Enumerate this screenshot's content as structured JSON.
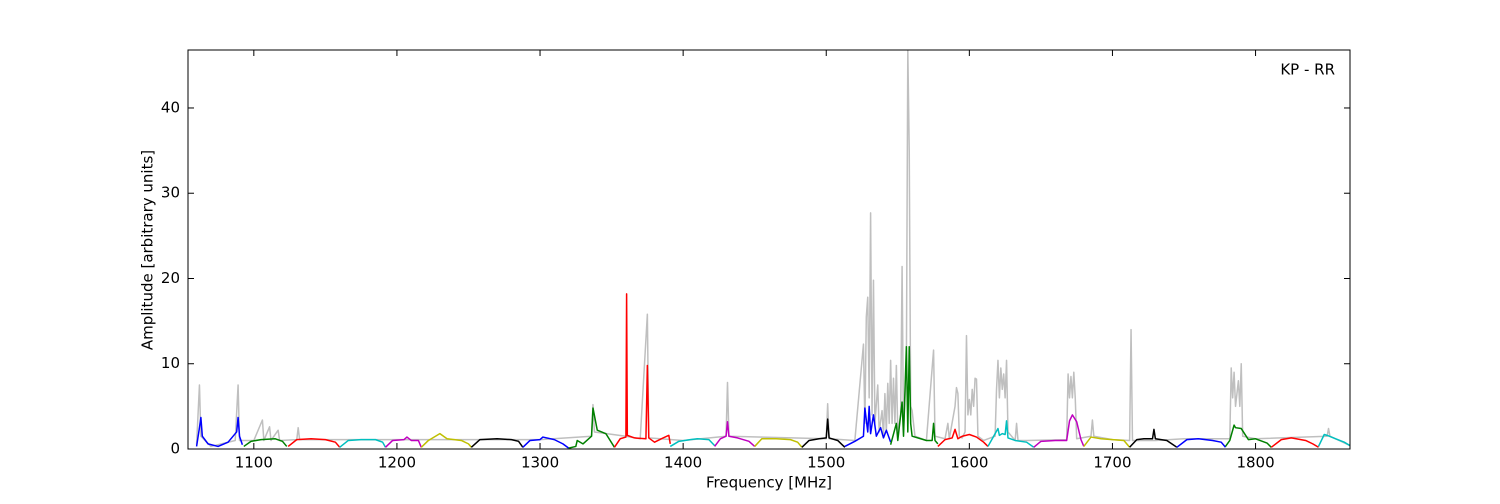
{
  "chart_data": {
    "type": "line",
    "annotation": "KP - RR",
    "xlabel": "Frequency [MHz]",
    "ylabel": "Amplitude [arbitrary units]",
    "xlim": [
      1054,
      1866
    ],
    "ylim": [
      0,
      46.8
    ],
    "xticks": [
      1100,
      1200,
      1300,
      1400,
      1500,
      1600,
      1700,
      1800
    ],
    "yticks": [
      0,
      10,
      20,
      30,
      40
    ],
    "series": [
      {
        "color": "#bfbfbf",
        "x": [
          1060,
          1062,
          1063,
          1070,
          1087,
          1089,
          1090,
          1100,
          1106,
          1107,
          1111,
          1112,
          1117,
          1118,
          1130,
          1131,
          1132,
          1200,
          1300,
          1336,
          1337,
          1338,
          1360,
          1370,
          1375,
          1376,
          1400,
          1430,
          1431,
          1432,
          1500,
          1501,
          1502,
          1520,
          1526,
          1527,
          1528,
          1529,
          1530,
          1531,
          1532,
          1533,
          1534,
          1536,
          1537,
          1539,
          1540,
          1541,
          1542,
          1543,
          1544,
          1545,
          1546,
          1547,
          1548,
          1549,
          1550,
          1552,
          1553,
          1554,
          1556,
          1557,
          1558,
          1559,
          1560,
          1561,
          1562,
          1570,
          1575,
          1576,
          1583,
          1585,
          1586,
          1590,
          1591,
          1592,
          1593,
          1595,
          1597,
          1598,
          1599,
          1600,
          1601,
          1602,
          1603,
          1604,
          1605,
          1606,
          1610,
          1618,
          1619,
          1620,
          1621,
          1622,
          1623,
          1624,
          1625,
          1626,
          1627,
          1632,
          1633,
          1634,
          1640,
          1668,
          1669,
          1670,
          1671,
          1672,
          1673,
          1674,
          1675,
          1685,
          1686,
          1687,
          1700,
          1712,
          1713,
          1714,
          1730,
          1750,
          1782,
          1783,
          1784,
          1785,
          1786,
          1787,
          1788,
          1789,
          1790,
          1791,
          1800,
          1850,
          1851,
          1852,
          1866
        ],
        "values": [
          0.5,
          7.5,
          1.5,
          0.3,
          1,
          7.5,
          1,
          1,
          3.4,
          1,
          2.6,
          1,
          2.2,
          1,
          1.1,
          2.5,
          1.1,
          1.1,
          1.1,
          1.5,
          5.2,
          2,
          1.5,
          1.2,
          15.8,
          1.3,
          1,
          1.5,
          7.8,
          1.5,
          1.2,
          5.3,
          1.2,
          1,
          12.3,
          3,
          15.5,
          17.8,
          6,
          27.7,
          4,
          19.8,
          3,
          7.5,
          2,
          4.5,
          1.5,
          6.5,
          2,
          7.7,
          3,
          10.4,
          3,
          8.3,
          3,
          9.8,
          2,
          4,
          21.4,
          2,
          10,
          46.8,
          35,
          5,
          4.5,
          3,
          1.5,
          1,
          11.6,
          1.5,
          1.2,
          3,
          1.2,
          5,
          7.2,
          6.5,
          1.5,
          1.3,
          2,
          13.3,
          4,
          5.8,
          4,
          7,
          5,
          8.3,
          8.2,
          1.5,
          1,
          1.5,
          7,
          10.4,
          6,
          9.5,
          7,
          8.8,
          6,
          10.4,
          2,
          1,
          3,
          1,
          1,
          1.1,
          8.8,
          6,
          8.5,
          6,
          9,
          6,
          1.2,
          1.5,
          3.4,
          1.5,
          1.1,
          1,
          14,
          1,
          1,
          1.2,
          1.2,
          9.5,
          6,
          9,
          5,
          6.5,
          8,
          5,
          10,
          1.5,
          1.2,
          1.5,
          2.4,
          1.5,
          0.4
        ]
      },
      {
        "color": "#0000ff",
        "x": [
          1060,
          1062,
          1063,
          1064,
          1068,
          1075,
          1082,
          1088,
          1089,
          1090,
          1092
        ],
        "values": [
          0.3,
          2.5,
          3.7,
          1.5,
          0.6,
          0.3,
          0.8,
          2,
          3.7,
          1.5,
          0.5
        ]
      },
      {
        "color": "#008000",
        "x": [
          1093,
          1098,
          1105,
          1115,
          1120,
          1123
        ],
        "values": [
          0.3,
          0.9,
          1.1,
          1.2,
          0.9,
          0.3
        ]
      },
      {
        "color": "#ff0000",
        "x": [
          1124,
          1130,
          1140,
          1150,
          1157,
          1160
        ],
        "values": [
          0.3,
          1.1,
          1.2,
          1.1,
          0.8,
          0.2
        ]
      },
      {
        "color": "#00bfbf",
        "x": [
          1160,
          1166,
          1175,
          1185,
          1190,
          1192
        ],
        "values": [
          0.2,
          1.0,
          1.1,
          1.1,
          0.8,
          0.2
        ]
      },
      {
        "color": "#bf00bf",
        "x": [
          1192,
          1197,
          1205,
          1207,
          1210,
          1215,
          1217
        ],
        "values": [
          0.2,
          1.0,
          1.1,
          1.4,
          1.0,
          1.0,
          0.2
        ]
      },
      {
        "color": "#bfbf00",
        "x": [
          1217,
          1222,
          1230,
          1235,
          1245,
          1250,
          1252
        ],
        "values": [
          0.2,
          1.0,
          1.8,
          1.2,
          1.0,
          0.6,
          0.2
        ]
      },
      {
        "color": "#000000",
        "x": [
          1252,
          1258,
          1270,
          1280,
          1285,
          1288
        ],
        "values": [
          0.2,
          1.1,
          1.2,
          1.1,
          0.9,
          0.2
        ]
      },
      {
        "color": "#0000ff",
        "x": [
          1288,
          1293,
          1300,
          1302,
          1310,
          1316,
          1320
        ],
        "values": [
          0.2,
          1.0,
          1.1,
          1.4,
          1.1,
          0.6,
          0.1
        ]
      },
      {
        "color": "#008000",
        "x": [
          1320,
          1325,
          1326,
          1330,
          1336,
          1337,
          1340,
          1346,
          1352
        ],
        "values": [
          0.1,
          0.3,
          1.0,
          0.6,
          1.5,
          4.8,
          2.2,
          1.8,
          0.2
        ]
      },
      {
        "color": "#ff0000",
        "x": [
          1352,
          1356,
          1360,
          1360.5,
          1361,
          1366,
          1374,
          1375,
          1376,
          1380,
          1386,
          1390,
          1391
        ],
        "values": [
          0.2,
          1.2,
          1.4,
          18.2,
          1.6,
          1.3,
          1.2,
          9.8,
          1.3,
          0.8,
          1.3,
          1.6,
          0.6
        ]
      },
      {
        "color": "#00bfbf",
        "x": [
          1391,
          1397,
          1405,
          1410,
          1418,
          1422
        ],
        "values": [
          0.3,
          0.9,
          1.1,
          1.2,
          1.1,
          0.4
        ]
      },
      {
        "color": "#bf00bf",
        "x": [
          1422,
          1426,
          1430,
          1431,
          1432,
          1438,
          1446,
          1450
        ],
        "values": [
          0.3,
          1.2,
          1.5,
          3.2,
          1.5,
          1.3,
          0.9,
          0.3
        ]
      },
      {
        "color": "#bfbf00",
        "x": [
          1450,
          1455,
          1465,
          1475,
          1480,
          1483
        ],
        "values": [
          0.3,
          1.2,
          1.2,
          1.1,
          0.8,
          0.2
        ]
      },
      {
        "color": "#000000",
        "x": [
          1483,
          1488,
          1495,
          1500,
          1501,
          1502,
          1508,
          1513
        ],
        "values": [
          0.2,
          1.0,
          1.2,
          1.3,
          3.5,
          1.3,
          1.0,
          0.2
        ]
      },
      {
        "color": "#0000ff",
        "x": [
          1513,
          1520,
          1526,
          1527,
          1529,
          1530,
          1531,
          1533,
          1535,
          1538,
          1540,
          1542,
          1545
        ],
        "values": [
          0.3,
          0.9,
          1.5,
          4.8,
          2,
          5,
          1.8,
          4,
          1.5,
          2.5,
          1.3,
          2.2,
          0.8
        ]
      },
      {
        "color": "#008000",
        "x": [
          1545,
          1549,
          1550,
          1553,
          1554,
          1556,
          1557,
          1558,
          1559,
          1560,
          1566,
          1570,
          1574,
          1575,
          1576,
          1578
        ],
        "values": [
          0.5,
          3,
          1,
          5.5,
          1.5,
          12,
          2,
          12,
          3,
          1.5,
          1.2,
          1.0,
          1.0,
          3,
          1,
          0.6
        ]
      },
      {
        "color": "#ff0000",
        "x": [
          1578,
          1583,
          1588,
          1590,
          1592,
          1595,
          1600,
          1605,
          1610,
          1613
        ],
        "values": [
          0.3,
          1.1,
          1.3,
          2.3,
          1.2,
          1.5,
          1.7,
          1.4,
          0.8,
          0.3
        ]
      },
      {
        "color": "#00bfbf",
        "x": [
          1613,
          1617,
          1620,
          1621,
          1623,
          1625,
          1626,
          1627,
          1632,
          1640,
          1645
        ],
        "values": [
          0.3,
          1.5,
          2.4,
          1.6,
          1.8,
          1.7,
          3.3,
          1.3,
          1.0,
          0.8,
          0.2
        ]
      },
      {
        "color": "#bf00bf",
        "x": [
          1645,
          1650,
          1660,
          1668,
          1670,
          1672,
          1675,
          1678,
          1680
        ],
        "values": [
          0.2,
          0.9,
          1,
          1.0,
          3.3,
          4.0,
          3.2,
          1.1,
          0.3
        ]
      },
      {
        "color": "#bfbf00",
        "x": [
          1680,
          1685,
          1692,
          1700,
          1708,
          1712
        ],
        "values": [
          0.3,
          1.4,
          1.2,
          1.1,
          1.0,
          0.2
        ]
      },
      {
        "color": "#000000",
        "x": [
          1712,
          1717,
          1722,
          1728,
          1729,
          1730,
          1738,
          1745
        ],
        "values": [
          0.2,
          1.1,
          1.2,
          1.2,
          2.3,
          1.2,
          1.0,
          0.2
        ]
      },
      {
        "color": "#0000ff",
        "x": [
          1745,
          1752,
          1760,
          1770,
          1776,
          1779
        ],
        "values": [
          0.2,
          1.1,
          1.2,
          1.0,
          0.8,
          0.2
        ]
      },
      {
        "color": "#008000",
        "x": [
          1779,
          1782,
          1785,
          1786,
          1790,
          1795,
          1800,
          1808,
          1811
        ],
        "values": [
          0.3,
          1.0,
          2.8,
          2.5,
          2.4,
          1.1,
          1.2,
          0.7,
          0.2
        ]
      },
      {
        "color": "#ff0000",
        "x": [
          1811,
          1818,
          1825,
          1835,
          1840,
          1844
        ],
        "values": [
          0.2,
          1.1,
          1.3,
          1.0,
          0.6,
          0.2
        ]
      },
      {
        "color": "#00bfbf",
        "x": [
          1844,
          1848,
          1850,
          1856,
          1862,
          1866
        ],
        "values": [
          0.3,
          1.7,
          1.6,
          1.2,
          0.8,
          0.4
        ]
      }
    ]
  }
}
